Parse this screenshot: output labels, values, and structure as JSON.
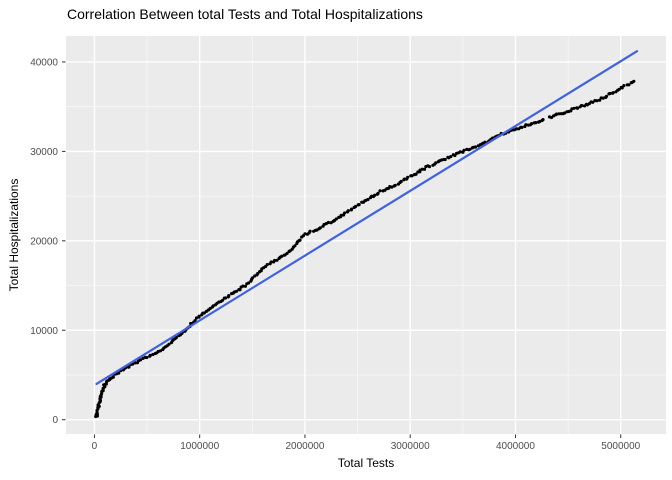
{
  "chart_data": {
    "type": "scatter",
    "title": "Correlation Between total Tests and Total Hospitalizations",
    "xlabel": "Total Tests",
    "ylabel": "Total Hospitalizations",
    "x_ticks": {
      "values": [
        0,
        1000000,
        2000000,
        3000000,
        4000000,
        5000000
      ],
      "labels": [
        "0",
        "1000000",
        "2000000",
        "3000000",
        "4000000",
        "5000000"
      ]
    },
    "y_ticks": {
      "values": [
        0,
        10000,
        20000,
        30000,
        40000
      ],
      "labels": [
        "0",
        "10000",
        "20000",
        "30000",
        "40000"
      ]
    },
    "x_minor_ticks": [
      500000,
      1500000,
      2500000,
      3500000,
      4500000
    ],
    "y_minor_ticks": [
      5000,
      15000,
      25000,
      35000
    ],
    "xlim": [
      -270000,
      5430000
    ],
    "ylim": [
      -1600,
      42900
    ],
    "grid": true,
    "legend": false,
    "colors": {
      "panel_background": "#EBEBEB",
      "grid": "#FFFFFF",
      "points": "#000000",
      "regression_line": "#4062DE",
      "tick_labels": "#4D4D4D",
      "tick_marks": "#333333"
    },
    "series": [
      {
        "name": "cumulative-observations",
        "geom": "point",
        "color": "#000000",
        "control_points": [
          [
            20000,
            250
          ],
          [
            30000,
            900
          ],
          [
            50000,
            2100
          ],
          [
            70000,
            3100
          ],
          [
            100000,
            3950
          ],
          [
            130000,
            4400
          ],
          [
            180000,
            4850
          ],
          [
            250000,
            5400
          ],
          [
            350000,
            6100
          ],
          [
            500000,
            7000
          ],
          [
            650000,
            7900
          ],
          [
            800000,
            9300
          ],
          [
            900000,
            10500
          ],
          [
            1000000,
            11600
          ],
          [
            1150000,
            12900
          ],
          [
            1300000,
            14000
          ],
          [
            1450000,
            15100
          ],
          [
            1580000,
            16700
          ],
          [
            1700000,
            17700
          ],
          [
            1850000,
            18700
          ],
          [
            2000000,
            20700
          ],
          [
            2150000,
            21500
          ],
          [
            2300000,
            22400
          ],
          [
            2500000,
            24000
          ],
          [
            2700000,
            25400
          ],
          [
            2900000,
            26500
          ],
          [
            3100000,
            27900
          ],
          [
            3300000,
            29000
          ],
          [
            3500000,
            30000
          ],
          [
            3700000,
            30900
          ],
          [
            3870000,
            31900
          ],
          [
            4050000,
            32700
          ],
          [
            4250000,
            33500
          ],
          [
            4450000,
            34300
          ],
          [
            4650000,
            35100
          ],
          [
            4850000,
            36100
          ],
          [
            5000000,
            37100
          ],
          [
            5150000,
            37900
          ]
        ],
        "point_gaps": [
          [
            4270000,
            4320000
          ]
        ]
      },
      {
        "name": "linear-regression",
        "geom": "line",
        "color": "#4062DE",
        "width": 2.2,
        "points": [
          [
            20000,
            4000
          ],
          [
            5155000,
            41200
          ]
        ]
      }
    ]
  }
}
